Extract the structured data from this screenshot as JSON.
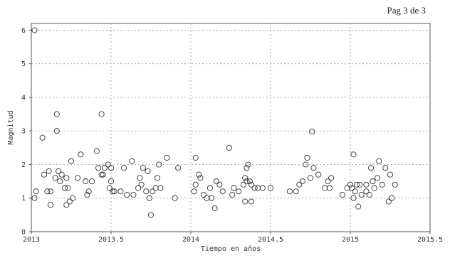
{
  "page_label": "Pag 3 de 3",
  "chart_data": {
    "type": "scatter",
    "xlabel": "Tiempo en años",
    "ylabel": "Magnitud",
    "xlim": [
      2013,
      2015.5
    ],
    "ylim": [
      0,
      6.2
    ],
    "x_ticks": [
      2013,
      2013.5,
      2014,
      2014.5,
      2015,
      2015.5
    ],
    "x_tick_labels": [
      "2013",
      "2013.5",
      "2014",
      "2014.5",
      "2015",
      "2015.5"
    ],
    "y_ticks": [
      0,
      1,
      2,
      3,
      4,
      5,
      6
    ],
    "y_tick_labels": [
      "0",
      "1",
      "2",
      "3",
      "4",
      "5",
      "6"
    ],
    "grid": true,
    "marker": "open-circle",
    "points": [
      [
        2013.02,
        6.0
      ],
      [
        2013.02,
        1.0
      ],
      [
        2013.03,
        1.2
      ],
      [
        2013.07,
        2.8
      ],
      [
        2013.08,
        1.7
      ],
      [
        2013.11,
        1.8
      ],
      [
        2013.12,
        0.8
      ],
      [
        2013.12,
        1.2
      ],
      [
        2013.15,
        1.6
      ],
      [
        2013.16,
        3.5
      ],
      [
        2013.16,
        3.0
      ],
      [
        2013.17,
        1.8
      ],
      [
        2013.18,
        1.5
      ],
      [
        2013.19,
        1.7
      ],
      [
        2013.21,
        1.3
      ],
      [
        2013.22,
        0.8
      ],
      [
        2013.22,
        1.6
      ],
      [
        2013.23,
        1.3
      ],
      [
        2013.24,
        0.9
      ],
      [
        2013.25,
        2.1
      ],
      [
        2013.26,
        1.0
      ],
      [
        2013.29,
        1.6
      ],
      [
        2013.31,
        2.3
      ],
      [
        2013.34,
        1.5
      ],
      [
        2013.35,
        1.1
      ],
      [
        2013.36,
        1.2
      ],
      [
        2013.38,
        1.5
      ],
      [
        2013.41,
        2.4
      ],
      [
        2013.42,
        1.9
      ],
      [
        2013.44,
        3.5
      ],
      [
        2013.44,
        1.7
      ],
      [
        2013.45,
        1.7
      ],
      [
        2013.46,
        1.9
      ],
      [
        2013.48,
        2.0
      ],
      [
        2013.49,
        1.3
      ],
      [
        2013.5,
        1.5
      ],
      [
        2013.5,
        1.9
      ],
      [
        2013.51,
        1.2
      ],
      [
        2013.52,
        1.2
      ],
      [
        2013.56,
        1.2
      ],
      [
        2013.58,
        1.9
      ],
      [
        2013.63,
        2.1
      ],
      [
        2013.64,
        1.1
      ],
      [
        2013.67,
        1.3
      ],
      [
        2013.68,
        1.6
      ],
      [
        2013.69,
        1.4
      ],
      [
        2013.7,
        1.9
      ],
      [
        2013.72,
        1.2
      ],
      [
        2013.73,
        1.8
      ],
      [
        2013.74,
        1.0
      ],
      [
        2013.75,
        0.5
      ],
      [
        2013.76,
        1.2
      ],
      [
        2013.78,
        1.3
      ],
      [
        2013.79,
        1.6
      ],
      [
        2013.8,
        2.0
      ],
      [
        2013.81,
        1.3
      ],
      [
        2013.85,
        2.2
      ],
      [
        2013.9,
        1.0
      ],
      [
        2013.92,
        1.9
      ],
      [
        2014.02,
        1.2
      ],
      [
        2014.03,
        1.4
      ],
      [
        2014.03,
        2.2
      ],
      [
        2014.05,
        1.7
      ],
      [
        2014.06,
        1.6
      ],
      [
        2014.08,
        1.1
      ],
      [
        2014.1,
        1.0
      ],
      [
        2014.12,
        1.3
      ],
      [
        2014.13,
        1.0
      ],
      [
        2014.15,
        0.7
      ],
      [
        2014.16,
        1.5
      ],
      [
        2014.18,
        1.4
      ],
      [
        2014.2,
        1.2
      ],
      [
        2014.24,
        2.5
      ],
      [
        2014.26,
        1.1
      ],
      [
        2014.27,
        1.3
      ],
      [
        2014.3,
        1.2
      ],
      [
        2014.33,
        1.4
      ],
      [
        2014.34,
        0.9
      ],
      [
        2014.34,
        1.6
      ],
      [
        2014.35,
        1.9
      ],
      [
        2014.35,
        1.5
      ],
      [
        2014.36,
        2.0
      ],
      [
        2014.37,
        1.5
      ],
      [
        2014.38,
        0.9
      ],
      [
        2014.38,
        1.4
      ],
      [
        2014.4,
        1.3
      ],
      [
        2014.42,
        1.3
      ],
      [
        2014.5,
        1.3
      ],
      [
        2014.62,
        1.2
      ],
      [
        2014.66,
        1.2
      ],
      [
        2014.68,
        1.4
      ],
      [
        2014.7,
        1.5
      ],
      [
        2014.72,
        2.0
      ],
      [
        2014.73,
        2.2
      ],
      [
        2014.75,
        1.6
      ],
      [
        2014.76,
        2.98
      ],
      [
        2014.77,
        1.9
      ],
      [
        2014.8,
        1.7
      ],
      [
        2014.84,
        1.3
      ],
      [
        2014.86,
        1.5
      ],
      [
        2014.87,
        1.3
      ],
      [
        2014.88,
        1.6
      ],
      [
        2014.95,
        1.1
      ],
      [
        2014.98,
        1.3
      ],
      [
        2015.0,
        1.4
      ],
      [
        2015.01,
        1.3
      ],
      [
        2015.02,
        1.0
      ],
      [
        2015.02,
        2.3
      ],
      [
        2015.03,
        1.2
      ],
      [
        2015.04,
        1.4
      ],
      [
        2015.05,
        0.75
      ],
      [
        2015.06,
        1.4
      ],
      [
        2015.07,
        1.1
      ],
      [
        2015.1,
        1.2
      ],
      [
        2015.1,
        1.4
      ],
      [
        2015.12,
        1.1
      ],
      [
        2015.13,
        1.9
      ],
      [
        2015.14,
        1.5
      ],
      [
        2015.15,
        1.3
      ],
      [
        2015.17,
        1.6
      ],
      [
        2015.18,
        2.1
      ],
      [
        2015.2,
        1.4
      ],
      [
        2015.22,
        1.9
      ],
      [
        2015.24,
        0.9
      ],
      [
        2015.25,
        1.7
      ],
      [
        2015.26,
        1.0
      ],
      [
        2015.28,
        1.4
      ],
      [
        2013.1,
        1.2
      ],
      [
        2013.6,
        1.1
      ],
      [
        2014.45,
        1.3
      ]
    ]
  }
}
